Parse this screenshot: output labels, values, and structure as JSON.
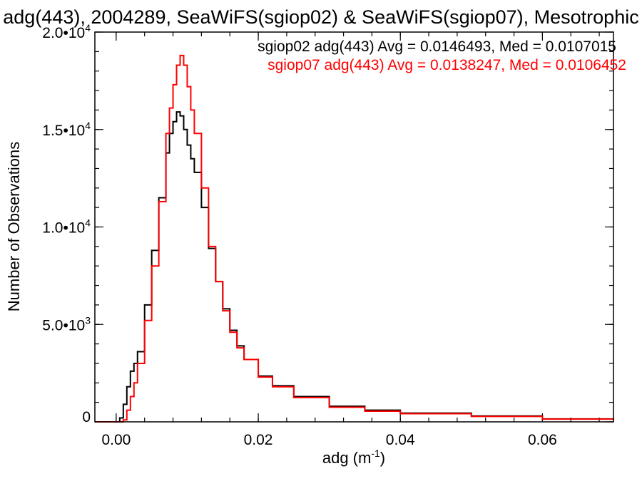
{
  "chart_data": {
    "type": "line",
    "step": true,
    "title": "adg(443), 2004289, SeaWiFS(sgiop02) & SeaWiFS(sgiop07), Mesotrophic",
    "xlabel": {
      "text": "adg (m",
      "sup": "-1",
      "suffix": ")"
    },
    "ylabel": "Number of Observations",
    "xlim": [
      -0.003,
      0.07
    ],
    "ylim": [
      0,
      20000
    ],
    "x_ticks": [
      {
        "value": 0.0,
        "label": "0.00"
      },
      {
        "value": 0.02,
        "label": "0.02"
      },
      {
        "value": 0.04,
        "label": "0.04"
      },
      {
        "value": 0.06,
        "label": "0.06"
      }
    ],
    "y_ticks": [
      {
        "value": 0,
        "label": "0",
        "exp": ""
      },
      {
        "value": 5000,
        "label": "5.0•10",
        "exp": "3"
      },
      {
        "value": 10000,
        "label": "1.0•10",
        "exp": "4"
      },
      {
        "value": 15000,
        "label": "1.5•10",
        "exp": "4"
      },
      {
        "value": 20000,
        "label": "2.0•10",
        "exp": "4"
      }
    ],
    "grid": false,
    "legend_position": "top-right",
    "series": [
      {
        "name": "sgiop02 adg(443) Avg = 0.0146493, Med = 0.0107015",
        "color": "#000000",
        "x": [
          -0.003,
          0.0005,
          0.001,
          0.0015,
          0.002,
          0.0025,
          0.003,
          0.004,
          0.005,
          0.006,
          0.007,
          0.0075,
          0.008,
          0.0085,
          0.009,
          0.0095,
          0.01,
          0.0105,
          0.011,
          0.012,
          0.013,
          0.014,
          0.015,
          0.016,
          0.017,
          0.018,
          0.02,
          0.022,
          0.025,
          0.03,
          0.035,
          0.04,
          0.05,
          0.06,
          0.07
        ],
        "y": [
          0,
          200,
          900,
          1800,
          2600,
          3000,
          3600,
          6000,
          8800,
          11500,
          13800,
          14800,
          15400,
          15900,
          15700,
          15000,
          14200,
          13500,
          12800,
          11000,
          8900,
          7200,
          5800,
          4700,
          3900,
          3200,
          2350,
          1850,
          1300,
          800,
          600,
          450,
          300,
          150,
          80
        ]
      },
      {
        "name": "sgiop07 adg(443) Avg = 0.0138247, Med = 0.0106452",
        "color": "#ff0000",
        "x": [
          -0.003,
          0.001,
          0.0015,
          0.002,
          0.0025,
          0.003,
          0.004,
          0.005,
          0.006,
          0.007,
          0.0075,
          0.008,
          0.0085,
          0.009,
          0.0095,
          0.01,
          0.0105,
          0.011,
          0.012,
          0.013,
          0.014,
          0.015,
          0.016,
          0.017,
          0.018,
          0.02,
          0.022,
          0.025,
          0.03,
          0.035,
          0.04,
          0.05,
          0.06,
          0.07
        ],
        "y": [
          0,
          100,
          600,
          1300,
          2000,
          3000,
          5200,
          8000,
          11300,
          14800,
          16100,
          17300,
          18300,
          18800,
          18300,
          17200,
          16000,
          14800,
          12000,
          9000,
          7200,
          5700,
          4600,
          3800,
          3200,
          2300,
          1800,
          1250,
          750,
          550,
          420,
          280,
          140,
          70
        ]
      }
    ]
  }
}
